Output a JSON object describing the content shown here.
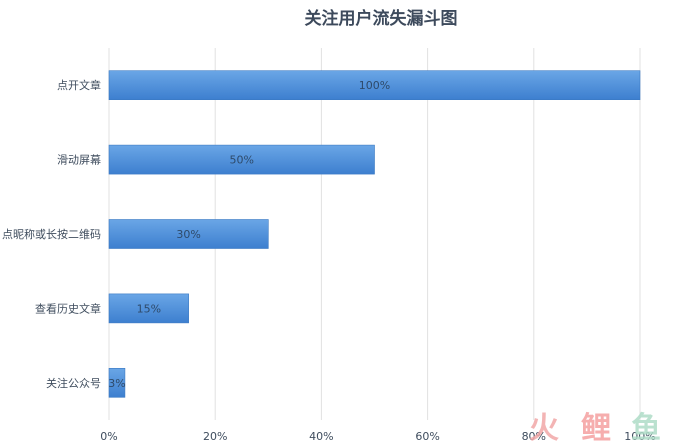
{
  "chart_data": {
    "type": "bar",
    "orientation": "horizontal",
    "title": "关注用户流失漏斗图",
    "categories": [
      "点开文章",
      "滑动屏幕",
      "点昵称或长按二维码",
      "查看历史文章",
      "关注公众号"
    ],
    "values": [
      100,
      50,
      30,
      15,
      3
    ],
    "data_labels": [
      "100%",
      "50%",
      "30%",
      "15%",
      "3%"
    ],
    "xlim": [
      0,
      100
    ],
    "x_ticks": [
      0,
      20,
      40,
      60,
      80,
      100
    ],
    "x_tick_labels": [
      "0%",
      "20%",
      "40%",
      "60%",
      "80%",
      "100%"
    ],
    "grid": true,
    "legend": "none",
    "bar_color_top": "#6aa6e6",
    "bar_color_bottom": "#3d7fcf"
  },
  "watermark": {
    "text": "火鲤鱼",
    "colors": [
      "#f1a7a7",
      "#f4a0a0",
      "#aedcc7"
    ]
  }
}
